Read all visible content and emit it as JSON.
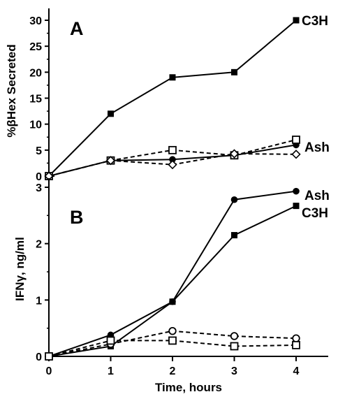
{
  "chart_data": [
    {
      "type": "line",
      "panel": "A",
      "ylabel": "%βHex Secreted",
      "xlabel": "",
      "xlim": [
        0,
        4.5
      ],
      "ylim": [
        0,
        32
      ],
      "yticks": [
        0,
        5,
        10,
        15,
        20,
        25,
        30
      ],
      "xticks": [
        0,
        1,
        2,
        3,
        4
      ],
      "grid": false,
      "series": [
        {
          "label": "C3H",
          "line": "solid",
          "marker": "filled-square",
          "x": [
            0,
            1,
            2,
            3,
            4
          ],
          "y": [
            0,
            12,
            19,
            20,
            30
          ]
        },
        {
          "label": "",
          "line": "solid",
          "marker": "filled-circle",
          "x": [
            0,
            1,
            2,
            3,
            4
          ],
          "y": [
            0,
            3,
            3.2,
            4,
            6
          ]
        },
        {
          "label": "Ash",
          "line": "dashed",
          "marker": "open-square",
          "x": [
            0,
            1,
            2,
            3,
            4
          ],
          "y": [
            0,
            3,
            5,
            4,
            7
          ]
        },
        {
          "label": "",
          "line": "dashed",
          "marker": "open-diamond",
          "x": [
            0,
            1,
            2,
            3,
            4
          ],
          "y": [
            0,
            3,
            2.2,
            4.3,
            4.2
          ]
        }
      ]
    },
    {
      "type": "line",
      "panel": "B",
      "ylabel": "IFNγ, ng/ml",
      "xlabel": "Time, hours",
      "xlim": [
        0,
        4.5
      ],
      "ylim": [
        0,
        3.1
      ],
      "yticks": [
        0,
        1,
        2,
        3
      ],
      "xticks": [
        0,
        1,
        2,
        3,
        4
      ],
      "grid": false,
      "series": [
        {
          "label": "Ash",
          "line": "solid",
          "marker": "filled-circle",
          "x": [
            0,
            1,
            2,
            3,
            4
          ],
          "y": [
            0,
            0.38,
            0.97,
            2.78,
            2.93
          ]
        },
        {
          "label": "C3H",
          "line": "solid",
          "marker": "filled-square",
          "x": [
            0,
            1,
            2,
            3,
            4
          ],
          "y": [
            0,
            0.18,
            0.97,
            2.15,
            2.67
          ]
        },
        {
          "label": "",
          "line": "dashed",
          "marker": "open-circle",
          "x": [
            0,
            1,
            2,
            3,
            4
          ],
          "y": [
            0,
            0.22,
            0.45,
            0.36,
            0.32
          ]
        },
        {
          "label": "",
          "line": "dashed",
          "marker": "open-square",
          "x": [
            0,
            1,
            2,
            3,
            4
          ],
          "y": [
            0,
            0.28,
            0.28,
            0.18,
            0.2
          ]
        }
      ]
    }
  ]
}
